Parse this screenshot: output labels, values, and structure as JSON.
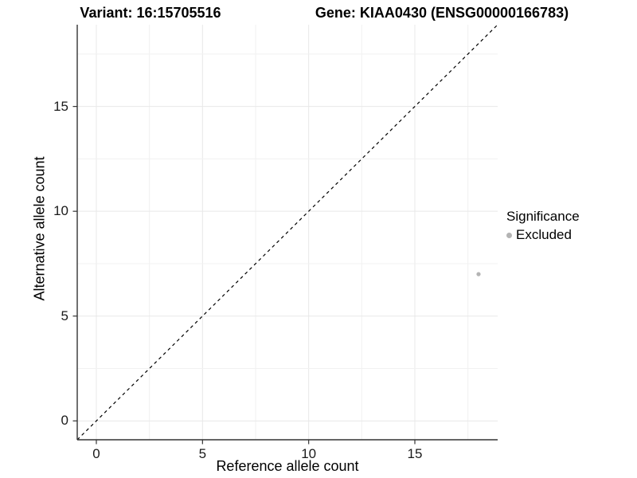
{
  "titles": {
    "variant": "Variant: 16:15705516",
    "gene": "Gene: KIAA0430 (ENSG00000166783)"
  },
  "legend": {
    "title": "Significance",
    "items": [
      {
        "label": "Excluded",
        "color": "#b4b4b4"
      }
    ]
  },
  "colors": {
    "background": "#ffffff",
    "grid_major": "#e8e8e8",
    "grid_minor": "#f1f1f1",
    "axis_line": "#333333",
    "identity_line": "#000000",
    "point": "#b4b4b4"
  },
  "chart_data": {
    "type": "scatter",
    "title": "Variant: 16:15705516 — Gene: KIAA0430 (ENSG00000166783)",
    "xlabel": "Reference allele count",
    "ylabel": "Alternative allele count",
    "xlim": [
      -0.9,
      18.9
    ],
    "ylim": [
      -0.9,
      18.9
    ],
    "xticks": [
      0,
      5,
      10,
      15
    ],
    "yticks": [
      0,
      5,
      10,
      15
    ],
    "grid_interval": 2.5,
    "grid": true,
    "legend_position": "right",
    "identity_line": {
      "style": "dashed",
      "from": [
        -0.9,
        -0.9
      ],
      "to": [
        18.9,
        18.9
      ]
    },
    "series": [
      {
        "name": "Excluded",
        "color": "#b4b4b4",
        "points": [
          {
            "x": 18,
            "y": 7
          }
        ]
      }
    ]
  }
}
